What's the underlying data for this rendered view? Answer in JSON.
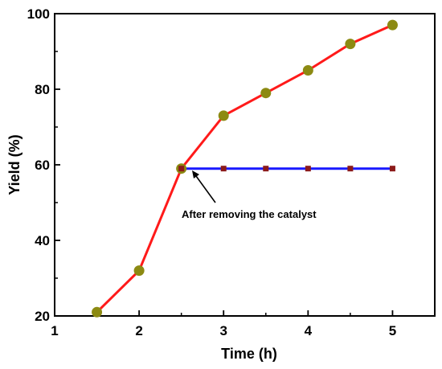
{
  "chart_data": {
    "type": "line",
    "title": "",
    "xlabel": "Time (h)",
    "ylabel": "Yield (%)",
    "xlim": [
      1,
      5.5
    ],
    "ylim": [
      20,
      100
    ],
    "x_ticks": [
      1,
      2,
      3,
      4,
      5
    ],
    "y_ticks": [
      20,
      40,
      60,
      80,
      100
    ],
    "grid": false,
    "legend": "none",
    "series": [
      {
        "x": [
          1.5,
          2,
          2.5,
          3,
          3.5,
          4,
          4.5,
          5
        ],
        "y": [
          21,
          32,
          59,
          73,
          79,
          85,
          92,
          97
        ],
        "line_color": "#ff1a1a",
        "marker": "circle",
        "marker_color": "#8c8a12"
      },
      {
        "x": [
          2.5,
          3,
          3.5,
          4,
          4.5,
          5
        ],
        "y": [
          59,
          59,
          59,
          59,
          59,
          59
        ],
        "line_color": "#1a1aff",
        "marker": "square",
        "marker_color": "#8b1a1a"
      }
    ],
    "annotations": [
      {
        "text": "After removing the catalyst",
        "points_to": {
          "x": 2.5,
          "y": 59
        }
      }
    ]
  }
}
